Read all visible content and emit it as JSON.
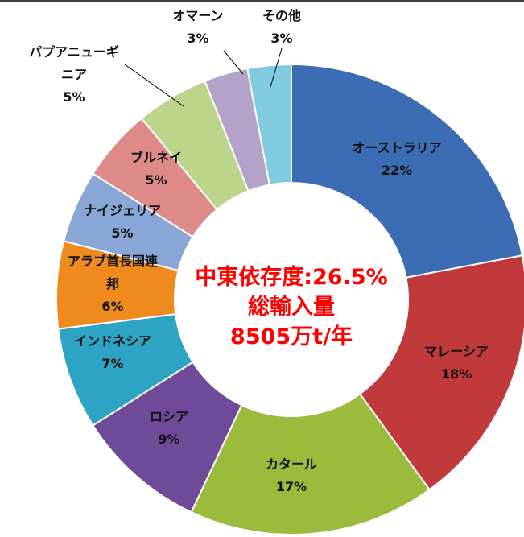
{
  "chart_data": {
    "type": "donut",
    "categories": [
      "オーストラリア",
      "マレーシア",
      "カタール",
      "ロシア",
      "インドネシア",
      "アラブ首長国連邦",
      "ナイジェリア",
      "ブルネイ",
      "パプアニューギニア",
      "オマーン",
      "その他"
    ],
    "values": [
      22,
      18,
      17,
      9,
      7,
      6,
      5,
      5,
      5,
      3,
      3
    ],
    "value_labels": [
      "22%",
      "18%",
      "17%",
      "9%",
      "7%",
      "6%",
      "5%",
      "5%",
      "5%",
      "3%",
      "3%"
    ],
    "colors": [
      "#3b6cb4",
      "#c0393b",
      "#9abb3c",
      "#6e4a99",
      "#2ea4c4",
      "#ef8a1f",
      "#89a7d6",
      "#dd8a89",
      "#bcd58b",
      "#b3a3c9",
      "#80cbe0"
    ],
    "center_text": [
      "中東依存度:26.5%",
      "総輸入量",
      "8505万t/年"
    ]
  }
}
